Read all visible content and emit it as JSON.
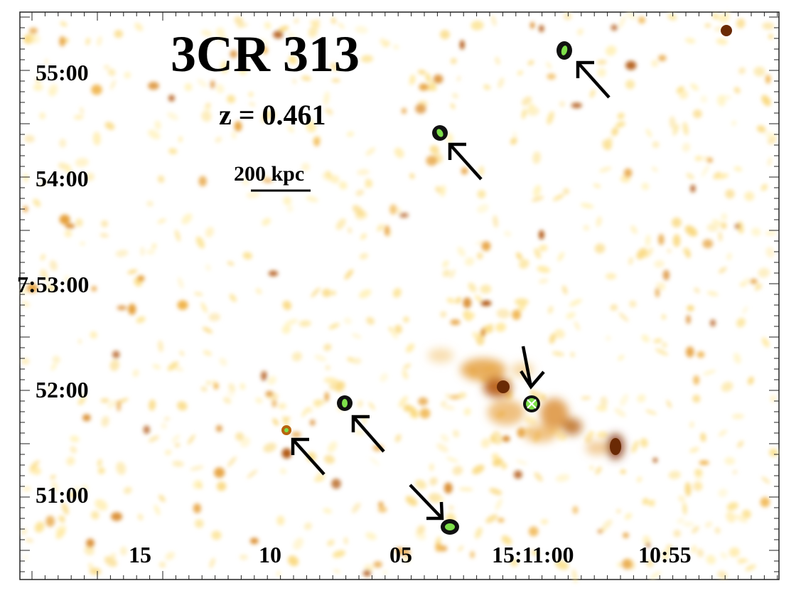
{
  "title": "3CR 313",
  "redshift": "z = 0.461",
  "scalebar": {
    "label": "200 kpc"
  },
  "dec_ticks": [
    "55:00",
    "54:00",
    "7:53:00",
    "52:00",
    "51:00"
  ],
  "ra_ticks": [
    "15",
    "10",
    "05",
    "15:11:00",
    "10:55"
  ],
  "colors": {
    "background": "#ffffff",
    "emission_faint": "#ffe9a0",
    "emission_mid": "#e8a030",
    "emission_bright": "#8a3a08",
    "source_core": "#7ee04a",
    "source_ring": "#111111",
    "arrow": "#000000"
  },
  "icons": [
    "arrow-icon",
    "point-source-icon",
    "nucleus-marker-icon"
  ]
}
